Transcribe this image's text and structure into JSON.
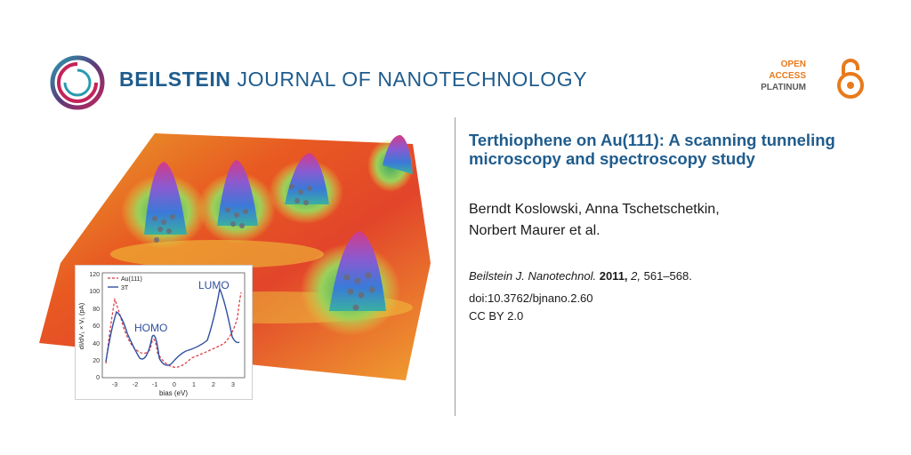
{
  "header": {
    "journal_bold": "BEILSTEIN",
    "journal_rest": "JOURNAL OF NANOTECHNOLOGY",
    "badge": {
      "line1": "OPEN",
      "line2": "ACCESS",
      "line3": "PLATINUM"
    }
  },
  "article": {
    "title": "Terthiophene on Au(111): A scanning tunneling microscopy and spectroscopy study",
    "authors_line1": "Berndt Koslowski, Anna Tschetschetkin,",
    "authors_line2": "Norbert Maurer et al.",
    "journal_abbr": "Beilstein J. Nanotechnol.",
    "year": "2011,",
    "volume": "2,",
    "pages": "561–568.",
    "doi": "doi:10.3762/bjnano.2.60",
    "license": "CC BY 2.0"
  },
  "inset_chart": {
    "legend_au": "Au(111)",
    "legend_3t": "3T",
    "label_lumo": "LUMO",
    "label_homo": "HOMO",
    "ylabel": "dI/dV₁ × V₁ (pA)",
    "xlabel": "bias (eV)",
    "yticks": [
      "0",
      "20",
      "40",
      "60",
      "80",
      "100",
      "120"
    ],
    "xticks": [
      "-3",
      "-2",
      "-1",
      "0",
      "1",
      "2",
      "3"
    ]
  },
  "colors": {
    "brand": "#1f5c8d",
    "oa_orange": "#e87a1c"
  }
}
